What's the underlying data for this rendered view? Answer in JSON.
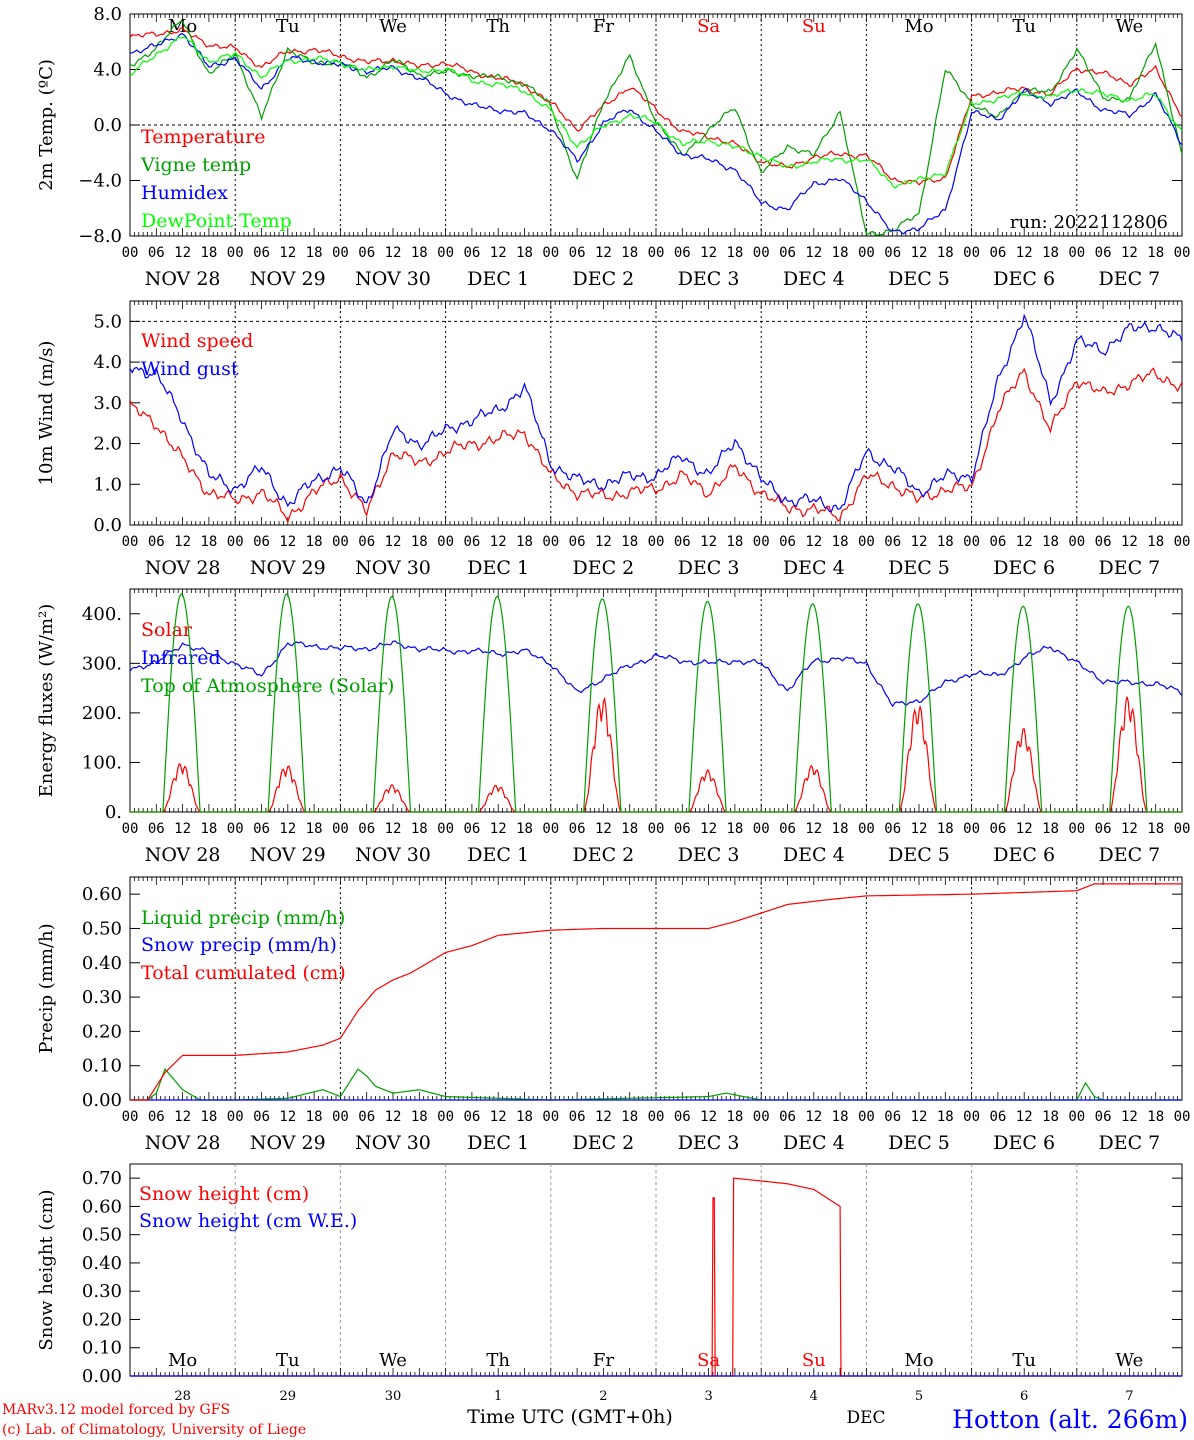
{
  "run": "run: 2022112806",
  "footer": {
    "model": "MARv3.12 model forced by GFS",
    "lab": "(c) Lab. of Climatology, University of Liege",
    "xlabel": "Time UTC (GMT+0h)",
    "month": "DEC",
    "station": "Hotton (alt. 266m)"
  },
  "day_names": [
    "Mo",
    "Tu",
    "We",
    "Th",
    "Fr",
    "Sa",
    "Su",
    "Mo",
    "Tu",
    "We"
  ],
  "date_labels": [
    "NOV 28",
    "NOV 29",
    "NOV 30",
    "DEC  1",
    "DEC  2",
    "DEC  3",
    "DEC  4",
    "DEC  5",
    "DEC  6",
    "DEC  7"
  ],
  "day_numbers": [
    "28",
    "29",
    "30",
    "1",
    "2",
    "3",
    "4",
    "5",
    "6",
    "7"
  ],
  "hour_labels": [
    "00",
    "06",
    "12",
    "18"
  ],
  "colors": {
    "red": "#ff0000",
    "green": "#00a000",
    "blue": "#0000ff",
    "lime": "#00ff00",
    "weekend": "#ff0000"
  },
  "chart_data": [
    {
      "type": "line",
      "ylabel": "2m Temp. (ºC)",
      "ylim": [
        -8,
        8
      ],
      "yticks": [
        "8.0",
        "4.0",
        "0.0",
        "−4.0",
        "−8.0"
      ],
      "x_unit": "hours since 2022-11-28 00 UTC",
      "series": [
        {
          "name": "Temperature",
          "color": "#ff0000",
          "x": [
            0,
            6,
            12,
            18,
            24,
            30,
            36,
            42,
            48,
            54,
            60,
            66,
            72,
            78,
            84,
            90,
            96,
            102,
            108,
            114,
            120,
            126,
            132,
            138,
            144,
            150,
            156,
            162,
            168,
            174,
            180,
            186,
            192,
            198,
            204,
            210,
            216,
            222,
            228,
            234,
            240
          ],
          "values": [
            6.3,
            6.6,
            6.8,
            5.8,
            5.5,
            4.2,
            5.3,
            5.4,
            5.0,
            4.5,
            4.7,
            4.2,
            4.5,
            3.8,
            3.4,
            2.9,
            1.6,
            -0.3,
            1.3,
            2.8,
            1.1,
            -0.5,
            -0.8,
            -1.4,
            -2.6,
            -3.1,
            -2.3,
            -2.1,
            -2.2,
            -3.9,
            -4.2,
            -3.8,
            2.0,
            2.4,
            2.6,
            2.2,
            4.1,
            3.7,
            3.0,
            4.0,
            0.7
          ]
        },
        {
          "name": "Vigne temp",
          "color": "#00a000",
          "x": [
            0,
            6,
            12,
            18,
            24,
            30,
            36,
            42,
            48,
            54,
            60,
            66,
            72,
            78,
            84,
            90,
            96,
            102,
            108,
            114,
            120,
            126,
            132,
            138,
            144,
            150,
            156,
            162,
            168,
            174,
            180,
            186,
            192,
            198,
            204,
            210,
            216,
            222,
            228,
            234,
            240
          ],
          "values": [
            4.2,
            5.6,
            7.6,
            3.6,
            5.2,
            0.5,
            5.5,
            4.4,
            4.6,
            3.4,
            4.7,
            3.6,
            3.8,
            3.6,
            3.4,
            3.0,
            1.4,
            -4.0,
            1.7,
            4.9,
            0.3,
            -2.2,
            -0.4,
            1.3,
            -3.5,
            -1.5,
            -2.2,
            1.0,
            -7.9,
            -7.6,
            -6.4,
            4.0,
            1.6,
            0.5,
            2.6,
            2.3,
            5.5,
            2.0,
            1.8,
            6.0,
            -2.3
          ]
        },
        {
          "name": "Humidex",
          "color": "#0000ff",
          "x": [
            0,
            6,
            12,
            18,
            24,
            30,
            36,
            42,
            48,
            54,
            60,
            66,
            72,
            78,
            84,
            90,
            96,
            102,
            108,
            114,
            120,
            126,
            132,
            138,
            144,
            150,
            156,
            162,
            168,
            174,
            180,
            186,
            192,
            198,
            204,
            210,
            216,
            222,
            228,
            234,
            240
          ],
          "values": [
            5.2,
            5.7,
            6.6,
            4.2,
            4.8,
            2.6,
            4.8,
            4.6,
            4.3,
            3.9,
            4.1,
            3.4,
            2.3,
            1.4,
            1.1,
            0.8,
            -0.3,
            -2.6,
            0.1,
            1.2,
            -0.5,
            -2.1,
            -2.5,
            -3.2,
            -5.6,
            -6.1,
            -4.2,
            -3.9,
            -5.4,
            -7.8,
            -7.4,
            -6.2,
            0.9,
            0.4,
            2.4,
            1.6,
            2.4,
            1.1,
            0.7,
            2.2,
            -1.4
          ]
        },
        {
          "name": "DewPoint Temp",
          "color": "#00ff00",
          "x": [
            0,
            6,
            12,
            18,
            24,
            30,
            36,
            42,
            48,
            54,
            60,
            66,
            72,
            78,
            84,
            90,
            96,
            102,
            108,
            114,
            120,
            126,
            132,
            138,
            144,
            150,
            156,
            162,
            168,
            174,
            180,
            186,
            192,
            198,
            204,
            210,
            216,
            222,
            228,
            234,
            240
          ],
          "values": [
            3.6,
            5.1,
            6.4,
            4.6,
            5.1,
            3.5,
            4.6,
            4.8,
            4.5,
            3.9,
            4.3,
            3.8,
            4.1,
            3.2,
            2.9,
            2.5,
            1.0,
            -1.5,
            -0.1,
            0.7,
            0.2,
            -1.4,
            -1.1,
            -1.6,
            -2.2,
            -3.1,
            -2.6,
            -2.5,
            -2.5,
            -4.3,
            -4.0,
            -3.4,
            1.5,
            1.9,
            2.3,
            2.0,
            2.6,
            2.2,
            1.8,
            2.2,
            -0.5
          ]
        }
      ]
    },
    {
      "type": "line",
      "ylabel": "10m Wind (m/s)",
      "ylim": [
        0,
        5.5
      ],
      "yticks": [
        "5.0",
        "4.0",
        "3.0",
        "2.0",
        "1.0",
        "0.0"
      ],
      "x_unit": "hours since 2022-11-28 00 UTC",
      "series": [
        {
          "name": "Wind speed",
          "color": "#ff0000",
          "x": [
            0,
            6,
            12,
            18,
            24,
            30,
            36,
            42,
            48,
            54,
            60,
            66,
            72,
            78,
            84,
            90,
            96,
            102,
            108,
            114,
            120,
            126,
            132,
            138,
            144,
            150,
            156,
            162,
            168,
            174,
            180,
            186,
            192,
            198,
            204,
            210,
            216,
            222,
            228,
            234,
            240
          ],
          "values": [
            2.9,
            2.5,
            1.6,
            0.8,
            0.6,
            0.8,
            0.2,
            0.8,
            1.2,
            0.3,
            1.8,
            1.5,
            1.8,
            2.0,
            2.1,
            2.3,
            1.2,
            0.8,
            0.7,
            0.8,
            0.9,
            1.2,
            0.8,
            1.4,
            0.8,
            0.4,
            0.4,
            0.2,
            1.2,
            1.0,
            0.6,
            0.9,
            0.9,
            2.8,
            3.8,
            2.3,
            3.6,
            3.2,
            3.5,
            3.7,
            3.4
          ]
        },
        {
          "name": "Wind gust",
          "color": "#0000ff",
          "x": [
            0,
            6,
            12,
            18,
            24,
            30,
            36,
            42,
            48,
            54,
            60,
            66,
            72,
            78,
            84,
            90,
            96,
            102,
            108,
            114,
            120,
            126,
            132,
            138,
            144,
            150,
            156,
            162,
            168,
            174,
            180,
            186,
            192,
            198,
            204,
            210,
            216,
            222,
            228,
            234,
            240
          ],
          "values": [
            3.9,
            3.7,
            2.6,
            1.2,
            0.9,
            1.4,
            0.5,
            1.1,
            1.4,
            0.5,
            2.3,
            2.0,
            2.3,
            2.6,
            2.8,
            3.4,
            1.5,
            1.1,
            1.0,
            1.2,
            1.2,
            1.7,
            1.2,
            2.1,
            1.1,
            0.6,
            0.6,
            0.4,
            1.8,
            1.4,
            0.8,
            1.2,
            1.2,
            3.5,
            5.2,
            3.0,
            4.5,
            4.3,
            4.8,
            4.9,
            4.5
          ]
        }
      ]
    },
    {
      "type": "line",
      "ylabel": "Energy fluxes (W/m²)",
      "ylim": [
        0,
        450
      ],
      "yticks": [
        "400.",
        "300.",
        "200.",
        "100.",
        "0."
      ],
      "x_unit": "hours since 2022-11-28 00 UTC",
      "series": [
        {
          "name": "Solar",
          "color": "#ff0000",
          "daily_peak": [
            100,
            95,
            55,
            55,
            235,
            85,
            95,
            220,
            170,
            235
          ],
          "values": []
        },
        {
          "name": "Infrared",
          "color": "#0000ff",
          "x": [
            0,
            6,
            12,
            18,
            24,
            30,
            36,
            42,
            48,
            54,
            60,
            66,
            72,
            78,
            84,
            90,
            96,
            102,
            108,
            114,
            120,
            126,
            132,
            138,
            144,
            150,
            156,
            162,
            168,
            174,
            180,
            186,
            192,
            198,
            204,
            210,
            216,
            222,
            228,
            234,
            240
          ],
          "values": [
            290,
            300,
            340,
            320,
            300,
            275,
            340,
            335,
            330,
            330,
            340,
            330,
            325,
            325,
            320,
            325,
            300,
            240,
            270,
            295,
            315,
            305,
            300,
            305,
            300,
            245,
            305,
            310,
            300,
            215,
            225,
            260,
            280,
            275,
            310,
            335,
            300,
            265,
            260,
            260,
            240
          ]
        },
        {
          "name": "Top of Atmosphere (Solar)",
          "color": "#00a000",
          "daily_peak": [
            440,
            440,
            435,
            435,
            430,
            425,
            420,
            420,
            415,
            415
          ],
          "values": []
        }
      ],
      "sunrise_h": 7.5,
      "sunset_h": 16.0
    },
    {
      "type": "line",
      "ylabel": "Precip (mm/h)",
      "ylim": [
        0,
        0.65
      ],
      "yticks": [
        "0.60",
        "0.50",
        "0.40",
        "0.30",
        "0.20",
        "0.10",
        "0.00"
      ],
      "x_unit": "hours since 2022-11-28 00 UTC",
      "series": [
        {
          "name": "Liquid precip (mm/h)",
          "color": "#00a000",
          "x": [
            0,
            4,
            6,
            8,
            12,
            16,
            24,
            36,
            44,
            48,
            52,
            54,
            56,
            60,
            66,
            72,
            84,
            96,
            132,
            136,
            144,
            168,
            216,
            218,
            220,
            222,
            240
          ],
          "values": [
            0,
            0,
            0.02,
            0.09,
            0.03,
            0,
            0,
            0.005,
            0.03,
            0.01,
            0.09,
            0.07,
            0.04,
            0.02,
            0.03,
            0.01,
            0.005,
            0,
            0.01,
            0.02,
            0,
            0,
            0,
            0.05,
            0.01,
            0,
            0
          ]
        },
        {
          "name": "Snow precip (mm/h)",
          "color": "#0000ff",
          "x": [
            0,
            240
          ],
          "values": [
            0,
            0
          ]
        },
        {
          "name": "Total cumulated (cm)",
          "color": "#ff0000",
          "x": [
            0,
            4,
            8,
            12,
            24,
            36,
            44,
            48,
            52,
            56,
            60,
            64,
            68,
            72,
            78,
            84,
            96,
            108,
            120,
            132,
            138,
            144,
            150,
            160,
            168,
            192,
            216,
            220,
            240
          ],
          "values": [
            0,
            0,
            0.08,
            0.13,
            0.13,
            0.14,
            0.16,
            0.18,
            0.26,
            0.32,
            0.35,
            0.37,
            0.4,
            0.43,
            0.45,
            0.48,
            0.495,
            0.5,
            0.5,
            0.5,
            0.52,
            0.545,
            0.57,
            0.585,
            0.595,
            0.6,
            0.61,
            0.63,
            0.63
          ]
        }
      ]
    },
    {
      "type": "line",
      "ylabel": "Snow height (cm)",
      "ylim": [
        0,
        0.75
      ],
      "yticks": [
        "0.70",
        "0.60",
        "0.50",
        "0.40",
        "0.30",
        "0.20",
        "0.10",
        "0.00"
      ],
      "x_unit": "hours since 2022-11-28 00 UTC",
      "series": [
        {
          "name": "Snow height (cm)",
          "color": "#ff0000",
          "x": [
            0,
            132.8,
            133.0,
            133.3,
            133.5,
            137.5,
            137.7,
            144,
            150,
            156,
            162,
            162.2,
            240
          ],
          "values": [
            0,
            0,
            0.63,
            0.63,
            0,
            0,
            0.7,
            0.69,
            0.68,
            0.66,
            0.6,
            0,
            0
          ]
        },
        {
          "name": "Snow height (cm W.E.)",
          "color": "#0000ff",
          "x": [
            0,
            240
          ],
          "values": [
            0,
            0
          ]
        }
      ]
    }
  ]
}
